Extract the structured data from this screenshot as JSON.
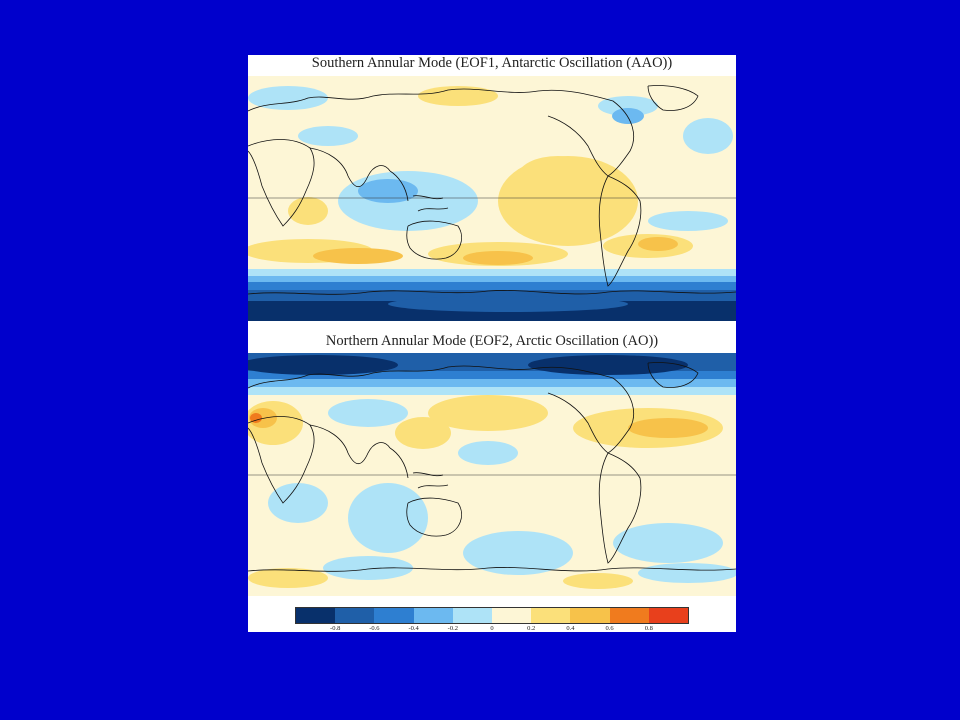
{
  "figure": {
    "panels": [
      {
        "title": "Southern Annular Mode (EOF1, Antarctic Oscillation (AAO))",
        "mode": "southern"
      },
      {
        "title": "Northern Annular Mode (EOF2, Arctic Oscillation (AO))",
        "mode": "northern"
      }
    ],
    "colorbar": {
      "colors": [
        "#08306b",
        "#1f5fa8",
        "#2e7fd1",
        "#6cb9f0",
        "#aee3f7",
        "#fdf6d6",
        "#fbe07a",
        "#f7c24a",
        "#f07b1e",
        "#e8401c"
      ],
      "tick_labels": [
        "-0.8",
        "-0.6",
        "-0.4",
        "-0.2",
        "0",
        "0.2",
        "0.4",
        "0.6",
        "0.8"
      ]
    }
  }
}
